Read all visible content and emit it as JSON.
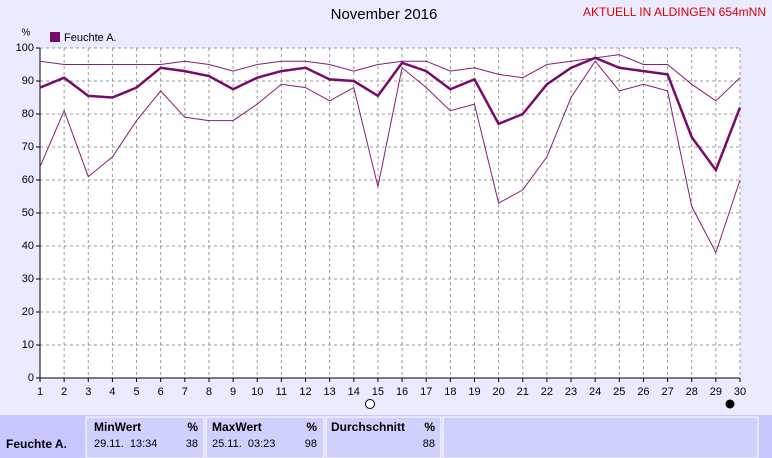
{
  "chart_data": {
    "type": "line",
    "title": "November 2016",
    "subtitle": "AKTUELL IN ALDINGEN 654mNN",
    "y_label": "%",
    "x": [
      1,
      2,
      3,
      4,
      5,
      6,
      7,
      8,
      9,
      10,
      11,
      12,
      13,
      14,
      15,
      16,
      17,
      18,
      19,
      20,
      21,
      22,
      23,
      24,
      25,
      26,
      27,
      28,
      29,
      30
    ],
    "xlim": [
      1,
      30
    ],
    "xticks": [
      1,
      2,
      3,
      4,
      5,
      6,
      7,
      8,
      9,
      10,
      11,
      12,
      13,
      14,
      15,
      16,
      17,
      18,
      19,
      20,
      21,
      22,
      23,
      24,
      25,
      26,
      27,
      28,
      29,
      30
    ],
    "ylim": [
      0,
      100
    ],
    "yticks": [
      0,
      10,
      20,
      30,
      40,
      50,
      60,
      70,
      80,
      90,
      100
    ],
    "grid": true,
    "series": [
      {
        "name": "Feuchte A.",
        "color": "#7a0a6a",
        "width": 2.5,
        "values": [
          88,
          91,
          85.5,
          85,
          88,
          94,
          93,
          91.5,
          87.5,
          91,
          93,
          94,
          90.5,
          90,
          85.5,
          95.5,
          93,
          87.5,
          90.5,
          77,
          80,
          89,
          94,
          97,
          94,
          93,
          92,
          73,
          63,
          82
        ]
      },
      {
        "color": "#8a1a7a",
        "width": 1,
        "values": [
          96,
          95,
          95,
          95,
          95,
          95,
          96,
          95,
          93,
          95,
          96,
          96,
          95,
          93,
          95,
          96,
          96,
          93,
          94,
          92,
          91,
          95,
          96,
          97,
          98,
          95,
          95,
          89,
          84,
          91
        ]
      },
      {
        "color": "#8a1a7a",
        "width": 1,
        "values": [
          64,
          81,
          61,
          67,
          78,
          87,
          79,
          78,
          78,
          83,
          89,
          88,
          84,
          88,
          58,
          94,
          88,
          81,
          83,
          53,
          57,
          67,
          85,
          96,
          87,
          89,
          87,
          52,
          38,
          60
        ]
      }
    ]
  },
  "stats": {
    "name": "Feuchte A.",
    "min": {
      "title": "MinWert",
      "unit": "%",
      "time": "29.11.  13:34",
      "value": 38
    },
    "max": {
      "title": "MaxWert",
      "unit": "%",
      "time": "25.11.  03:23",
      "value": 98
    },
    "avg": {
      "title": "Durchschnitt",
      "unit": "%",
      "value": 88
    }
  }
}
